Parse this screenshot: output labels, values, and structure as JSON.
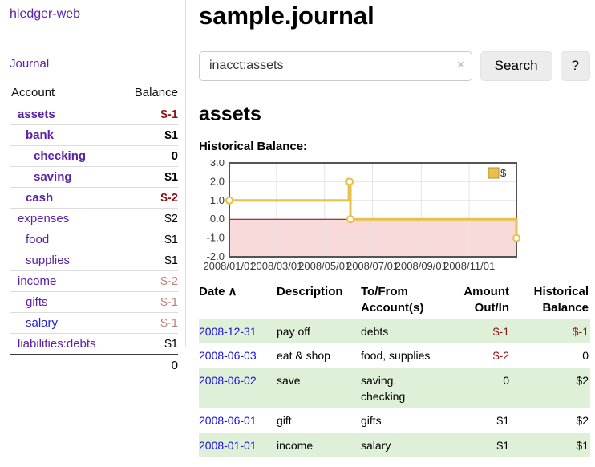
{
  "app": {
    "brand": "hledger-web",
    "nav_journal": "Journal"
  },
  "sidebar": {
    "col_account": "Account",
    "col_balance": "Balance",
    "accounts": [
      {
        "name": "assets",
        "balance": "$-1",
        "level": 0,
        "bold": true,
        "neg": "strong"
      },
      {
        "name": "bank",
        "balance": "$1",
        "level": 1,
        "bold": true,
        "neg": ""
      },
      {
        "name": "checking",
        "balance": "0",
        "level": 2,
        "bold": true,
        "neg": ""
      },
      {
        "name": "saving",
        "balance": "$1",
        "level": 2,
        "bold": true,
        "neg": ""
      },
      {
        "name": "cash",
        "balance": "$-2",
        "level": 1,
        "bold": true,
        "neg": "strong"
      },
      {
        "name": "expenses",
        "balance": "$2",
        "level": 0,
        "bold": false,
        "neg": ""
      },
      {
        "name": "food",
        "balance": "$1",
        "level": 1,
        "bold": false,
        "neg": ""
      },
      {
        "name": "supplies",
        "balance": "$1",
        "level": 1,
        "bold": false,
        "neg": ""
      },
      {
        "name": "income",
        "balance": "$-2",
        "level": 0,
        "bold": false,
        "neg": "muted"
      },
      {
        "name": "gifts",
        "balance": "$-1",
        "level": 1,
        "bold": false,
        "neg": "muted"
      },
      {
        "name": "salary",
        "balance": "$-1",
        "level": 1,
        "bold": false,
        "neg": "muted",
        "blue": true
      },
      {
        "name": "liabilities:debts",
        "balance": "$1",
        "level": 0,
        "bold": false,
        "neg": ""
      }
    ],
    "total": "0"
  },
  "header": {
    "title": "sample.journal"
  },
  "search": {
    "value": "inacct:assets",
    "clear_icon": "×",
    "button": "Search",
    "help": "?"
  },
  "account_page": {
    "heading": "assets",
    "chart_label": "Historical Balance:"
  },
  "chart_data": {
    "type": "line",
    "step": true,
    "title": "Historical Balance:",
    "xlabel": "",
    "ylabel": "",
    "xlim": [
      "2008-01-01",
      "2008-12-31"
    ],
    "ylim": [
      -2,
      3
    ],
    "y_ticks": [
      3.0,
      2.0,
      1.0,
      0.0,
      -1.0,
      -2.0
    ],
    "x_ticks": [
      "2008/01/01",
      "2008/03/01",
      "2008/05/01",
      "2008/07/01",
      "2008/09/01",
      "2008/11/01"
    ],
    "grid": true,
    "legend_position": "top-right",
    "series": [
      {
        "name": "$",
        "points": [
          [
            "2008-01-01",
            1
          ],
          [
            "2008-06-01",
            2
          ],
          [
            "2008-06-02",
            2
          ],
          [
            "2008-06-03",
            0
          ],
          [
            "2008-12-31",
            -1
          ]
        ]
      }
    ],
    "line_color": "#e9c04a",
    "marker_fill": "#ffffff",
    "negative_fill": "#f9dada",
    "zero_line_color": "#8b0000",
    "legend_swatch_border": "#b8922e"
  },
  "register": {
    "headers": {
      "date": "Date",
      "sort_icon": "∧",
      "description": "Description",
      "account": "To/From Account(s)",
      "amount": "Amount Out/In",
      "balance": "Historical Balance"
    },
    "rows": [
      {
        "date": "2008-12-31",
        "description": "pay off",
        "accounts": "debts",
        "amount": "$-1",
        "amount_neg": true,
        "balance": "$-1",
        "balance_neg": true
      },
      {
        "date": "2008-06-03",
        "description": "eat & shop",
        "accounts": "food, supplies",
        "amount": "$-2",
        "amount_neg": true,
        "balance": "0",
        "balance_neg": false
      },
      {
        "date": "2008-06-02",
        "description": "save",
        "accounts": "saving, checking",
        "amount": "0",
        "amount_neg": false,
        "balance": "$2",
        "balance_neg": false
      },
      {
        "date": "2008-06-01",
        "description": "gift",
        "accounts": "gifts",
        "amount": "$1",
        "amount_neg": false,
        "balance": "$2",
        "balance_neg": false
      },
      {
        "date": "2008-01-01",
        "description": "income",
        "accounts": "salary",
        "amount": "$1",
        "amount_neg": false,
        "balance": "$1",
        "balance_neg": false
      }
    ]
  }
}
